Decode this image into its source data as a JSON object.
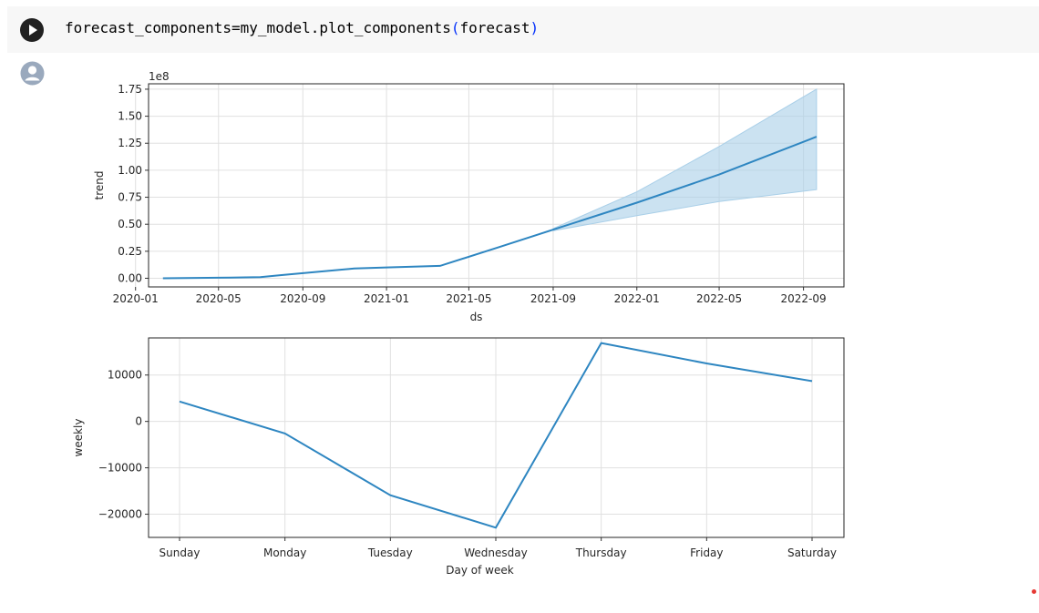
{
  "cell": {
    "code_pre": "forecast_components=my_model.plot_components",
    "code_open": "(",
    "code_arg": "forecast",
    "code_close": ")"
  },
  "icons": {
    "run": "play-icon",
    "output": "account-circle-icon"
  },
  "colors": {
    "line": "#2e86c1",
    "band": "#a9cfe8",
    "marker": "#e53935"
  },
  "chart_data": [
    {
      "type": "area",
      "xlabel": "ds",
      "ylabel": "trend",
      "y_offset_label": "1e8",
      "ylim": [
        -0.08,
        1.8
      ],
      "xlim": [
        "2020-01-20",
        "2022-10-30"
      ],
      "x_ticks": [
        "2020-01",
        "2020-05",
        "2020-09",
        "2021-01",
        "2021-05",
        "2021-09",
        "2022-01",
        "2022-05",
        "2022-09"
      ],
      "x_tick_labels": [
        "2020-01",
        "2020-05",
        "2020-09",
        "2021-01",
        "2021-05",
        "2021-09",
        "2022-01",
        "2022-05",
        "2022-09"
      ],
      "y_ticks": [
        0.0,
        0.25,
        0.5,
        0.75,
        1.0,
        1.25,
        1.5,
        1.75
      ],
      "y_tick_labels": [
        "0.00",
        "0.25",
        "0.50",
        "0.75",
        "1.00",
        "1.25",
        "1.50",
        "1.75"
      ],
      "grid": true,
      "series": [
        {
          "x": [
            "2020-02-10",
            "2020-05-01",
            "2020-07-01",
            "2020-08-01",
            "2020-11-15",
            "2021-01-01",
            "2021-03-20",
            "2021-06-15",
            "2021-09-01",
            "2022-01-01",
            "2022-05-01",
            "2022-09-20"
          ],
          "values": [
            0.0,
            0.005,
            0.01,
            0.03,
            0.09,
            0.1,
            0.115,
            0.29,
            0.45,
            0.7,
            0.96,
            1.31
          ]
        }
      ],
      "band": {
        "x": [
          "2021-09-01",
          "2022-01-01",
          "2022-05-01",
          "2022-09-20"
        ],
        "lower": [
          0.44,
          0.58,
          0.71,
          0.82
        ],
        "upper": [
          0.46,
          0.8,
          1.22,
          1.75
        ]
      }
    },
    {
      "type": "line",
      "xlabel": "Day of week",
      "ylabel": "weekly",
      "categories": [
        "Sunday",
        "Monday",
        "Tuesday",
        "Wednesday",
        "Thursday",
        "Friday",
        "Saturday"
      ],
      "ylim": [
        -25000,
        18000
      ],
      "y_ticks": [
        -20000,
        -10000,
        0,
        10000
      ],
      "y_tick_labels": [
        "−20000",
        "−10000",
        "0",
        "10000"
      ],
      "grid": true,
      "series": [
        {
          "values": [
            4300,
            -2600,
            -15900,
            -22900,
            16900,
            12500,
            8700
          ]
        }
      ]
    }
  ]
}
